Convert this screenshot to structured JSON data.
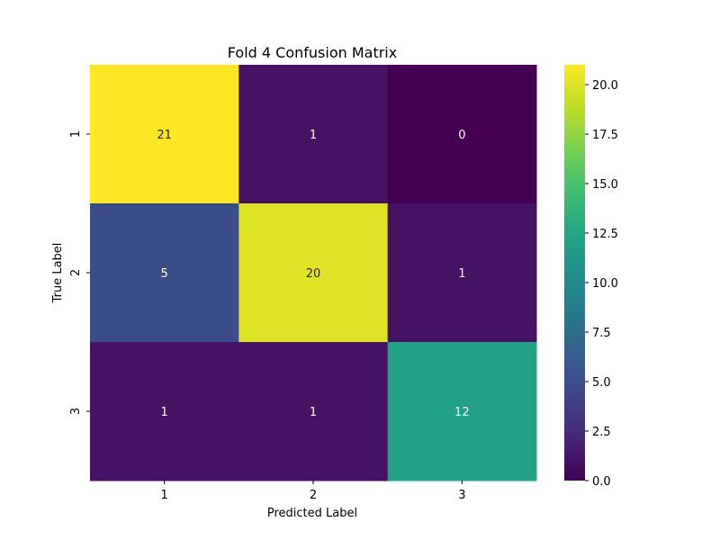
{
  "chart_data": {
    "type": "heatmap",
    "title": "Fold 4 Confusion Matrix",
    "xlabel": "Predicted Label",
    "ylabel": "True Label",
    "x_categories": [
      "1",
      "2",
      "3"
    ],
    "y_categories": [
      "1",
      "2",
      "3"
    ],
    "values": [
      [
        21,
        1,
        0
      ],
      [
        5,
        20,
        1
      ],
      [
        1,
        1,
        12
      ]
    ],
    "colormap": "viridis",
    "color_range": [
      0,
      21
    ],
    "colorbar_ticks": [
      "0.0",
      "2.5",
      "5.0",
      "7.5",
      "10.0",
      "12.5",
      "15.0",
      "17.5",
      "20.0"
    ],
    "grid": false,
    "annotations": true
  }
}
